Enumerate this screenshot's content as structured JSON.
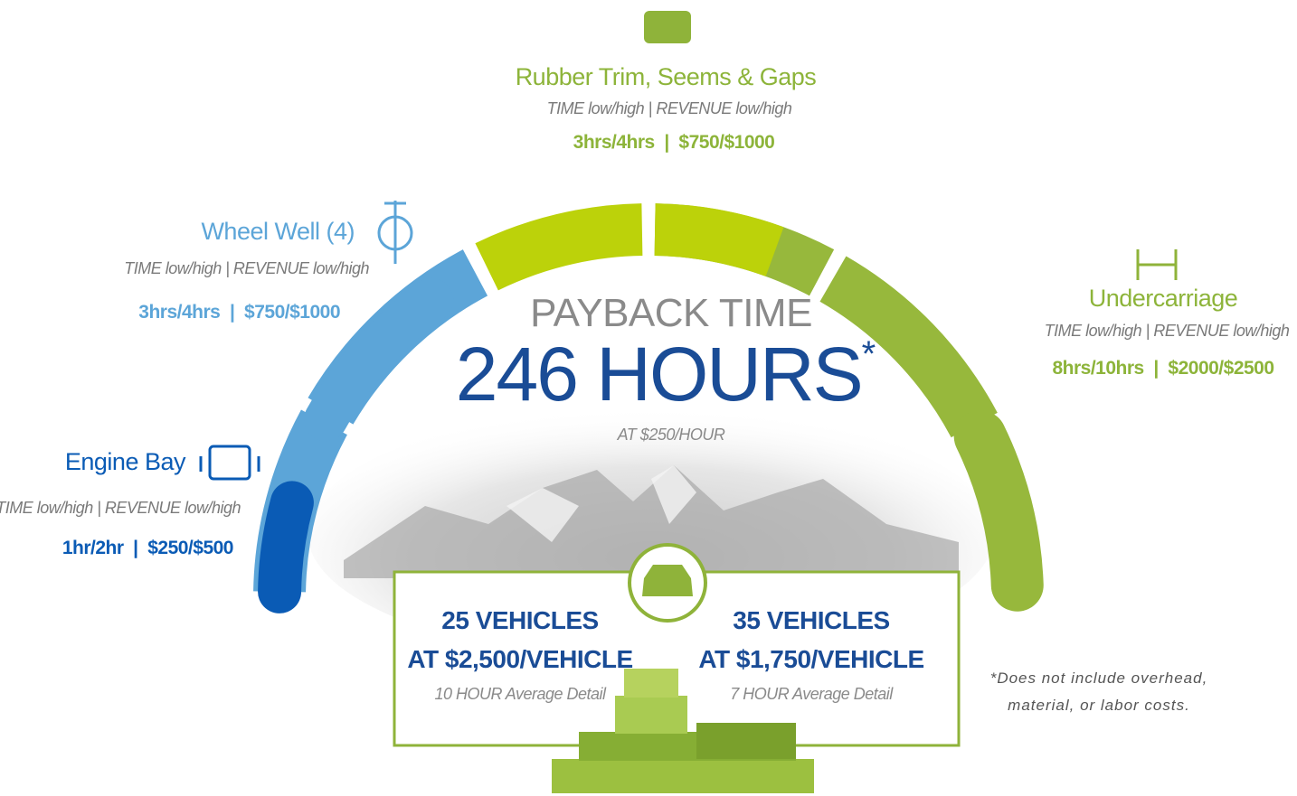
{
  "header": {
    "eyebrow": "PAYBACK TIME",
    "headline": "246 HOURS",
    "footnote_mark": "*",
    "rate": "AT $250/HOUR"
  },
  "services": [
    {
      "title": "Rubber Trim, Seems & Gaps",
      "legend": "TIME low/high | REVENUE low/high",
      "figures": "3hrs/4hrs  |  $750/$1000"
    },
    {
      "title": "Wheel Well (4)",
      "legend": "TIME low/high | REVENUE low/high",
      "figures": "3hrs/4hrs  |  $750/$1000"
    },
    {
      "title": "Undercarriage",
      "legend": "TIME low/high | REVENUE low/high",
      "figures": "8hrs/10hrs  |  $2000/$2500"
    },
    {
      "title": "Engine Bay",
      "legend": "TIME low/high | REVENUE low/high",
      "figures": "1hr/2hr  |  $250/$500"
    }
  ],
  "scenarios": [
    {
      "volume": "25 VEHICLES",
      "price": "AT $2,500/VEHICLE",
      "note": "10 HOUR Average Detail"
    },
    {
      "volume": "35 VEHICLES",
      "price": "AT $1,750/VEHICLE",
      "note": "7 HOUR Average Detail"
    }
  ],
  "disclaimer": "*Does not include overhead, material, or labor costs."
}
